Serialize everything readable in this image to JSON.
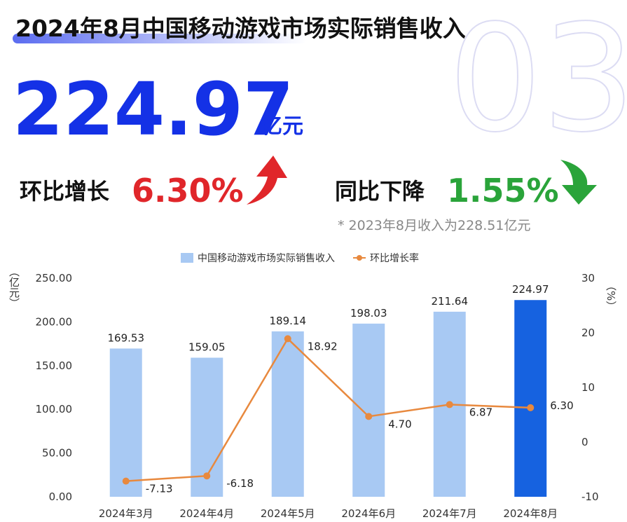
{
  "header": {
    "title": "2024年8月中国移动游戏市场实际销售收入",
    "watermark": "03",
    "amount": "224.97",
    "unit": "亿元",
    "mom_label": "环比增长",
    "mom_value": "6.30%",
    "yoy_label": "同比下降",
    "yoy_value": "1.55%",
    "note": "* 2023年8月收入为228.51亿元"
  },
  "chart_data": {
    "type": "bar",
    "categories": [
      "2024年3月",
      "2024年4月",
      "2024年5月",
      "2024年6月",
      "2024年7月",
      "2024年8月"
    ],
    "series": [
      {
        "name": "中国移动游戏市场实际销售收入",
        "type": "bar",
        "color": "#a8c9f3",
        "colors": [
          "#a8c9f3",
          "#a8c9f3",
          "#a8c9f3",
          "#a8c9f3",
          "#a8c9f3",
          "#1662e0"
        ],
        "values": [
          169.53,
          159.05,
          189.14,
          198.03,
          211.64,
          224.97
        ]
      },
      {
        "name": "环比增长率",
        "type": "line",
        "axis": "y2",
        "color": "#e8893e",
        "values": [
          -7.13,
          -6.18,
          18.92,
          4.7,
          6.87,
          6.3
        ],
        "value_labels": [
          "-7.13",
          "-6.18",
          "18.92",
          "4.70",
          "6.87",
          "6.30"
        ]
      }
    ],
    "y_label": "（亿元）",
    "y2_label": "（%）",
    "ylim": [
      0,
      250
    ],
    "yticks": [
      {
        "value": 0,
        "label": "0.00"
      },
      {
        "value": 50,
        "label": "50.00"
      },
      {
        "value": 100,
        "label": "100.00"
      },
      {
        "value": 150,
        "label": "150.00"
      },
      {
        "value": 200,
        "label": "200.00"
      },
      {
        "value": 250,
        "label": "250.00"
      }
    ],
    "y2lim": [
      -10,
      30
    ],
    "y2ticks": [
      -10,
      0,
      10,
      20,
      30
    ],
    "legend": "top",
    "grid": false
  }
}
